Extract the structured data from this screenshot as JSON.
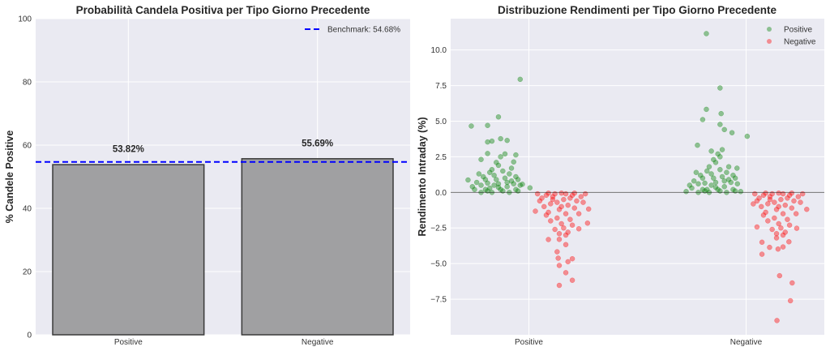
{
  "chart_data": [
    {
      "type": "bar",
      "title": "Probabilità Candela Positiva per Tipo Giorno Precedente",
      "xlabel": "",
      "ylabel": "% Candele Positive",
      "categories": [
        "Positive",
        "Negative"
      ],
      "values": [
        53.82,
        55.69
      ],
      "data_labels": [
        "53.82%",
        "55.69%"
      ],
      "ylim": [
        0,
        100
      ],
      "yticks": [
        0,
        20,
        40,
        60,
        80,
        100
      ],
      "bar_color": "#a0a0a2",
      "bar_edge_color": "#3a3a3a",
      "grid": true,
      "background": "#eaeaf2",
      "benchmark": {
        "value": 54.68,
        "label": "Benchmark: 54.68%",
        "color": "#0000ff",
        "style": "dashed"
      },
      "legend_position": "top-right"
    },
    {
      "type": "scatter",
      "title": "Distribuzione Rendimenti per Tipo Giorno Precedente",
      "xlabel": "",
      "ylabel": "Rendimento Intraday (%)",
      "categories": [
        "Positive",
        "Negative"
      ],
      "ylim": [
        -10,
        12.2
      ],
      "xlim": [
        -0.36,
        1.36
      ],
      "yticks": [
        -7.5,
        -5.0,
        -2.5,
        0.0,
        2.5,
        5.0,
        7.5,
        10.0
      ],
      "ytick_labels": [
        "−7.5",
        "−5.0",
        "−2.5",
        "0.0",
        "2.5",
        "5.0",
        "7.5",
        "10.0"
      ],
      "grid": true,
      "background": "#eaeaf2",
      "zero_line": 0,
      "legend_position": "top-right",
      "series": [
        {
          "name": "Positive",
          "color": "#008000",
          "points": [
            [
              -0.04,
              7.94
            ],
            [
              -0.14,
              5.3
            ],
            [
              -0.265,
              4.66
            ],
            [
              -0.19,
              4.7
            ],
            [
              -0.19,
              3.54
            ],
            [
              -0.17,
              3.6
            ],
            [
              -0.13,
              3.77
            ],
            [
              -0.1,
              3.65
            ],
            [
              -0.22,
              2.31
            ],
            [
              -0.19,
              2.73
            ],
            [
              -0.06,
              2.63
            ],
            [
              -0.07,
              2.14
            ],
            [
              0.005,
              0.32
            ],
            [
              -0.03,
              0.57
            ],
            [
              -0.28,
              0.87
            ],
            [
              -0.25,
              0.2
            ],
            [
              -0.22,
              0.5
            ],
            [
              -0.2,
              0.9
            ],
            [
              -0.18,
              0.3
            ],
            [
              -0.16,
              1.2
            ],
            [
              -0.14,
              0.6
            ],
            [
              -0.12,
              1.5
            ],
            [
              -0.1,
              0.4
            ],
            [
              -0.08,
              0.8
            ],
            [
              -0.06,
              0.2
            ],
            [
              -0.04,
              0.5
            ],
            [
              -0.24,
              0.7
            ],
            [
              -0.21,
              1.1
            ],
            [
              -0.19,
              0.1
            ],
            [
              -0.17,
              1.6
            ],
            [
              -0.15,
              0.9
            ],
            [
              -0.13,
              0.2
            ],
            [
              -0.11,
              1.0
            ],
            [
              -0.09,
              1.3
            ],
            [
              -0.07,
              0.6
            ],
            [
              -0.05,
              0.9
            ],
            [
              -0.23,
              1.3
            ],
            [
              -0.2,
              0.2
            ],
            [
              -0.18,
              1.4
            ],
            [
              -0.16,
              0.5
            ],
            [
              -0.14,
              1.9
            ],
            [
              -0.12,
              0.1
            ],
            [
              -0.1,
              0.7
            ],
            [
              -0.08,
              1.7
            ],
            [
              -0.06,
              1.1
            ],
            [
              -0.26,
              0.4
            ],
            [
              -0.15,
              2.1
            ],
            [
              -0.13,
              2.5
            ],
            [
              -0.11,
              2.7
            ],
            [
              -0.17,
              0.0
            ],
            [
              -0.09,
              0.0
            ],
            [
              -0.22,
              0.0
            ],
            [
              -0.05,
              0.1
            ],
            [
              -0.14,
              0.35
            ],
            [
              -0.19,
              0.65
            ],
            [
              0.817,
              11.15
            ],
            [
              0.88,
              7.33
            ],
            [
              0.817,
              5.83
            ],
            [
              0.885,
              5.53
            ],
            [
              0.8,
              5.11
            ],
            [
              0.88,
              4.77
            ],
            [
              1.005,
              3.94
            ],
            [
              0.935,
              4.19
            ],
            [
              0.9,
              4.41
            ],
            [
              0.776,
              3.31
            ],
            [
              0.724,
              0.06
            ],
            [
              0.975,
              0.06
            ],
            [
              0.958,
              1.7
            ],
            [
              0.75,
              0.3
            ],
            [
              0.78,
              0.6
            ],
            [
              0.8,
              1.0
            ],
            [
              0.82,
              0.2
            ],
            [
              0.84,
              1.3
            ],
            [
              0.86,
              0.7
            ],
            [
              0.88,
              1.6
            ],
            [
              0.9,
              0.4
            ],
            [
              0.92,
              0.9
            ],
            [
              0.94,
              0.2
            ],
            [
              0.96,
              0.6
            ],
            [
              0.76,
              0.8
            ],
            [
              0.79,
              1.2
            ],
            [
              0.81,
              0.1
            ],
            [
              0.83,
              1.8
            ],
            [
              0.85,
              1.0
            ],
            [
              0.87,
              0.2
            ],
            [
              0.89,
              1.1
            ],
            [
              0.91,
              1.4
            ],
            [
              0.93,
              0.7
            ],
            [
              0.95,
              1.0
            ],
            [
              0.77,
              1.4
            ],
            [
              0.8,
              0.2
            ],
            [
              0.82,
              1.5
            ],
            [
              0.84,
              0.5
            ],
            [
              0.86,
              2.1
            ],
            [
              0.88,
              0.1
            ],
            [
              0.9,
              0.8
            ],
            [
              0.92,
              1.8
            ],
            [
              0.94,
              1.2
            ],
            [
              0.74,
              0.5
            ],
            [
              0.85,
              2.3
            ],
            [
              0.87,
              2.7
            ],
            [
              0.89,
              3.0
            ],
            [
              0.83,
              0.0
            ],
            [
              0.91,
              0.0
            ],
            [
              0.78,
              0.0
            ],
            [
              0.95,
              0.1
            ],
            [
              0.86,
              0.35
            ],
            [
              0.81,
              0.65
            ],
            [
              0.84,
              2.9
            ],
            [
              0.88,
              2.5
            ]
          ]
        },
        {
          "name": "Negative",
          "color": "#ff0000",
          "points": [
            [
              0.14,
              -6.53
            ],
            [
              0.2,
              -6.17
            ],
            [
              0.17,
              -5.64
            ],
            [
              0.14,
              -5.13
            ],
            [
              0.18,
              -4.87
            ],
            [
              0.2,
              -4.66
            ],
            [
              0.135,
              -4.62
            ],
            [
              0.13,
              -4.17
            ],
            [
              0.17,
              -3.67
            ],
            [
              0.09,
              -3.31
            ],
            [
              0.27,
              -2.16
            ],
            [
              0.23,
              -2.56
            ],
            [
              0.03,
              -1.32
            ],
            [
              0.275,
              -1.17
            ],
            [
              0.04,
              -0.1
            ],
            [
              0.06,
              -0.4
            ],
            [
              0.08,
              -0.2
            ],
            [
              0.1,
              -0.8
            ],
            [
              0.12,
              -0.1
            ],
            [
              0.14,
              -1.2
            ],
            [
              0.16,
              -0.5
            ],
            [
              0.18,
              -0.9
            ],
            [
              0.2,
              -0.2
            ],
            [
              0.22,
              -0.6
            ],
            [
              0.24,
              -0.3
            ],
            [
              0.26,
              -0.1
            ],
            [
              0.05,
              -0.6
            ],
            [
              0.07,
              -1.0
            ],
            [
              0.09,
              -1.4
            ],
            [
              0.11,
              -0.5
            ],
            [
              0.13,
              -1.8
            ],
            [
              0.15,
              -2.2
            ],
            [
              0.17,
              -1.5
            ],
            [
              0.19,
              -1.9
            ],
            [
              0.21,
              -1.1
            ],
            [
              0.23,
              -1.5
            ],
            [
              0.25,
              -0.7
            ],
            [
              0.12,
              -2.6
            ],
            [
              0.14,
              -2.9
            ],
            [
              0.16,
              -2.5
            ],
            [
              0.18,
              -2.8
            ],
            [
              0.2,
              -2.3
            ],
            [
              0.1,
              -2.0
            ],
            [
              0.08,
              -1.6
            ],
            [
              0.15,
              -0.05
            ],
            [
              0.11,
              -0.3
            ],
            [
              0.17,
              -0.1
            ],
            [
              0.19,
              -0.4
            ],
            [
              0.13,
              -0.7
            ],
            [
              0.21,
              -0.05
            ],
            [
              0.09,
              -0.05
            ],
            [
              0.15,
              -1.0
            ],
            [
              0.17,
              -3.0
            ],
            [
              0.14,
              -3.3
            ],
            [
              1.142,
              -9.0
            ],
            [
              1.204,
              -7.61
            ],
            [
              1.212,
              -6.36
            ],
            [
              1.154,
              -5.85
            ],
            [
              1.073,
              -4.34
            ],
            [
              1.147,
              -3.98
            ],
            [
              1.108,
              -3.86
            ],
            [
              1.17,
              -3.83
            ],
            [
              1.073,
              -3.5
            ],
            [
              1.197,
              -3.47
            ],
            [
              1.233,
              -2.52
            ],
            [
              1.279,
              -1.19
            ],
            [
              1.033,
              -0.81
            ],
            [
              1.05,
              -2.43
            ],
            [
              1.04,
              -0.1
            ],
            [
              1.06,
              -0.4
            ],
            [
              1.08,
              -0.2
            ],
            [
              1.1,
              -0.8
            ],
            [
              1.12,
              -0.1
            ],
            [
              1.14,
              -1.2
            ],
            [
              1.16,
              -0.5
            ],
            [
              1.18,
              -0.9
            ],
            [
              1.2,
              -0.2
            ],
            [
              1.22,
              -0.6
            ],
            [
              1.24,
              -0.3
            ],
            [
              1.26,
              -0.1
            ],
            [
              1.05,
              -0.6
            ],
            [
              1.07,
              -1.0
            ],
            [
              1.09,
              -1.4
            ],
            [
              1.11,
              -0.5
            ],
            [
              1.13,
              -1.8
            ],
            [
              1.15,
              -2.2
            ],
            [
              1.17,
              -1.5
            ],
            [
              1.19,
              -1.9
            ],
            [
              1.21,
              -1.1
            ],
            [
              1.23,
              -1.5
            ],
            [
              1.25,
              -0.7
            ],
            [
              1.12,
              -2.6
            ],
            [
              1.14,
              -2.9
            ],
            [
              1.16,
              -2.5
            ],
            [
              1.18,
              -2.8
            ],
            [
              1.2,
              -2.3
            ],
            [
              1.1,
              -2.0
            ],
            [
              1.08,
              -1.6
            ],
            [
              1.15,
              -0.05
            ],
            [
              1.11,
              -0.3
            ],
            [
              1.17,
              -0.1
            ],
            [
              1.19,
              -0.4
            ],
            [
              1.13,
              -0.7
            ],
            [
              1.21,
              -0.05
            ],
            [
              1.09,
              -0.05
            ],
            [
              1.15,
              -1.0
            ],
            [
              1.17,
              -3.0
            ],
            [
              1.14,
              -3.2
            ]
          ]
        }
      ]
    }
  ]
}
